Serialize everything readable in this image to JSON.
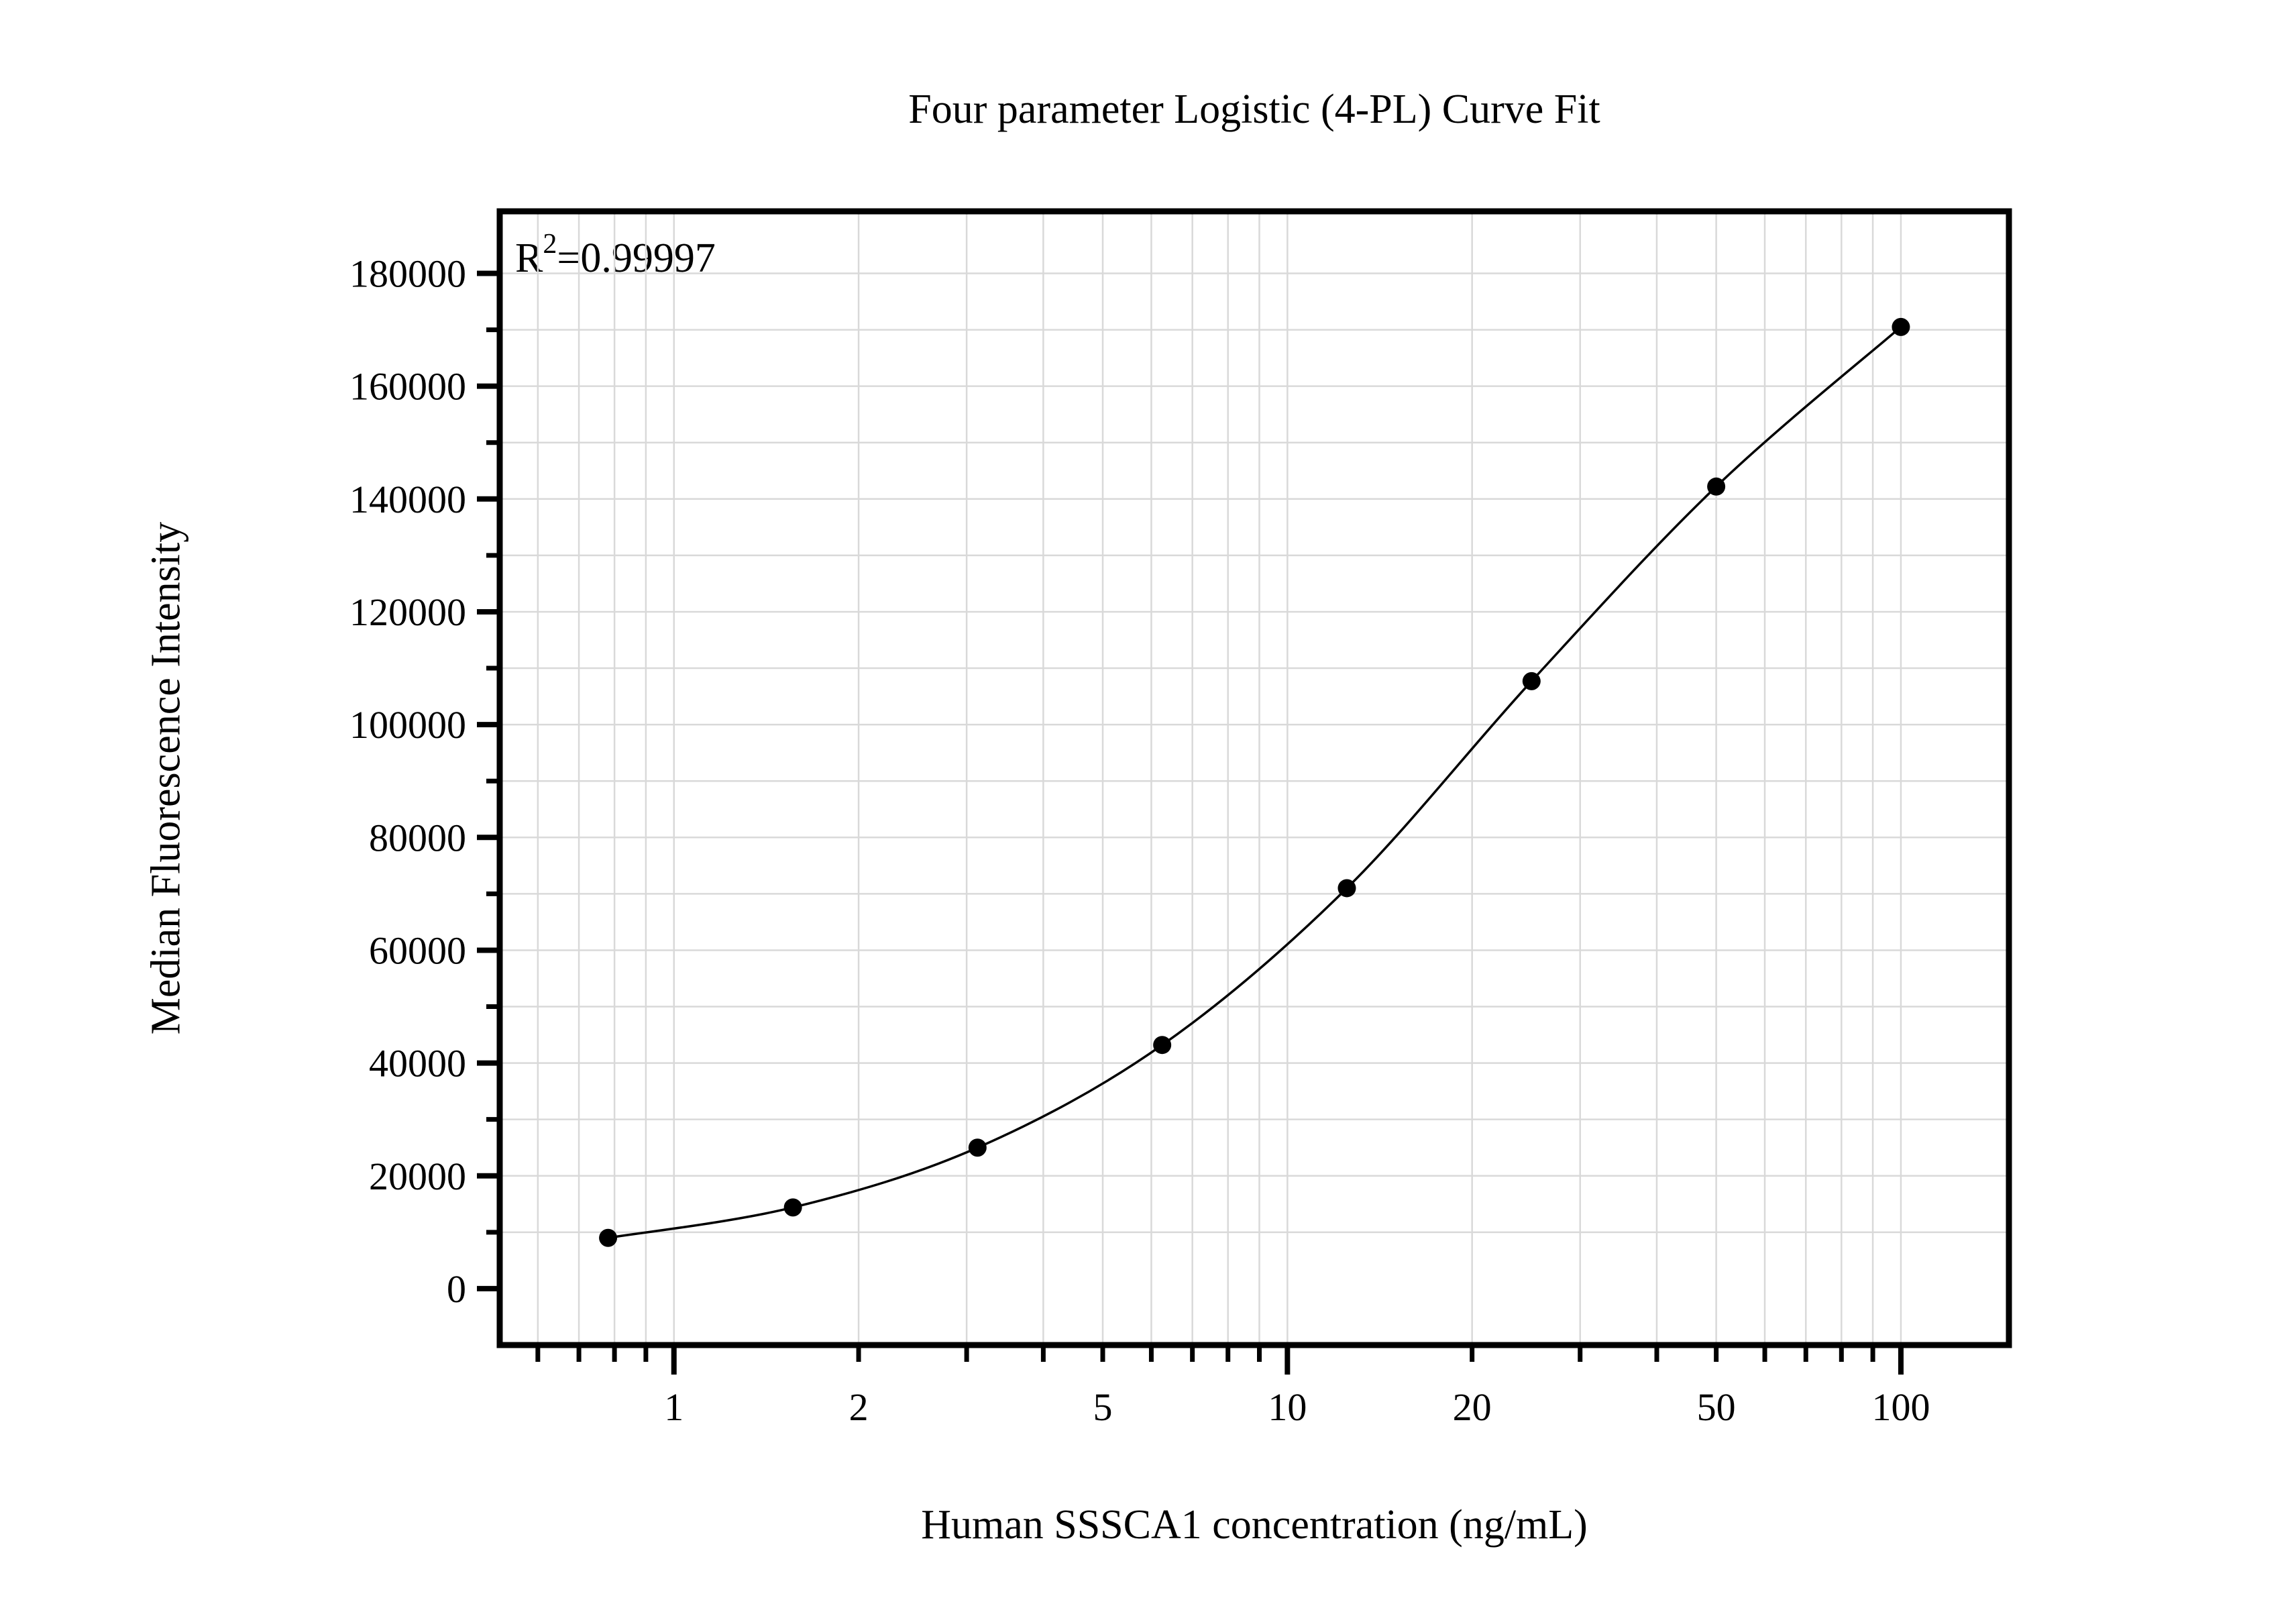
{
  "figure": {
    "annotation": {
      "base": "R",
      "sup": "2",
      "rest": "=0.99997"
    }
  },
  "chart_data": {
    "type": "scatter",
    "fit": "four-parameter-logistic-curve",
    "title": "Four parameter Logistic (4-PL) Curve Fit",
    "xlabel": "Human SSSCA1 concentration (ng/mL)",
    "ylabel": "Median Fluorescence Intensity",
    "annotation": "R²=0.99997",
    "x_scale": "log",
    "x": [
      0.781,
      1.563,
      3.125,
      6.25,
      12.5,
      25,
      50,
      100
    ],
    "y": [
      9000,
      14400,
      25000,
      43200,
      71000,
      107700,
      142200,
      170500
    ],
    "x_axis": {
      "labeled_ticks": [
        1,
        2,
        5,
        10,
        20,
        50,
        100
      ],
      "tick_labels": [
        "1",
        "2",
        "5",
        "10",
        "20",
        "50",
        "100"
      ],
      "major_ticks": [
        1,
        10,
        100
      ],
      "range": [
        0.52,
        150
      ]
    },
    "y_axis": {
      "tick_labels": [
        "0",
        "20000",
        "40000",
        "60000",
        "80000",
        "100000",
        "120000",
        "140000",
        "160000",
        "180000"
      ],
      "major_step": 20000,
      "minor_step": 10000,
      "label_max": 180000,
      "range": [
        -10000,
        191000
      ]
    },
    "grid": true,
    "legend": false,
    "colors": {
      "points": "#000000",
      "curve": "#000000",
      "grid": "#d9d9d9",
      "frame": "#000000",
      "text": "#000000"
    }
  }
}
